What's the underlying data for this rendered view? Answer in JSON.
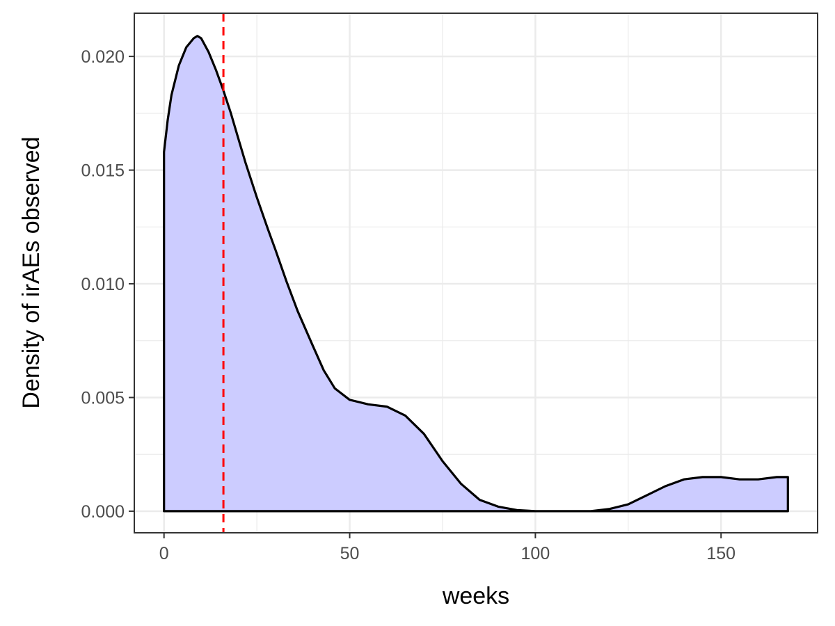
{
  "chart_data": {
    "type": "area",
    "xlabel": "weeks",
    "ylabel": "Density of irAEs observed",
    "xlim": [
      -8,
      176
    ],
    "ylim": [
      -0.00095,
      0.0219
    ],
    "x_ticks": [
      0,
      50,
      100,
      150
    ],
    "x_tick_labels": [
      "0",
      "50",
      "100",
      "150"
    ],
    "x_minor_ticks": [
      25,
      75,
      125
    ],
    "y_ticks": [
      0,
      0.005,
      0.01,
      0.015,
      0.02
    ],
    "y_tick_labels": [
      "0.000",
      "0.005",
      "0.010",
      "0.015",
      "0.020"
    ],
    "y_minor_ticks": [
      0.0025,
      0.0075,
      0.0125,
      0.0175
    ],
    "grid": true,
    "legend": "none",
    "series": [
      {
        "x": [
          0,
          1,
          2,
          4,
          6,
          8,
          9,
          10,
          12,
          14,
          16,
          18,
          20,
          22,
          25,
          28,
          30,
          33,
          36,
          40,
          43,
          46,
          50,
          55,
          60,
          65,
          70,
          75,
          80,
          85,
          90,
          95,
          100,
          105,
          110,
          115,
          120,
          125,
          130,
          135,
          140,
          145,
          150,
          155,
          160,
          165,
          168
        ],
        "y": [
          0.0158,
          0.0172,
          0.0183,
          0.0196,
          0.0204,
          0.0208,
          0.0209,
          0.0208,
          0.0202,
          0.0194,
          0.0185,
          0.0175,
          0.0164,
          0.0153,
          0.0138,
          0.0124,
          0.0115,
          0.0101,
          0.0088,
          0.0073,
          0.0062,
          0.0054,
          0.0049,
          0.0047,
          0.0046,
          0.0042,
          0.0034,
          0.0022,
          0.0012,
          0.0005,
          0.0002,
          5e-05,
          0.0,
          0.0,
          0.0,
          0.0,
          0.0001,
          0.0003,
          0.0007,
          0.0011,
          0.0014,
          0.0015,
          0.0015,
          0.0014,
          0.0014,
          0.0015,
          0.0015
        ]
      }
    ],
    "fill_color": "#ccccff",
    "line_color": "#000000",
    "reference_line": {
      "orientation": "vertical",
      "x": 16,
      "color": "#ff0000",
      "style": "dashed"
    }
  }
}
